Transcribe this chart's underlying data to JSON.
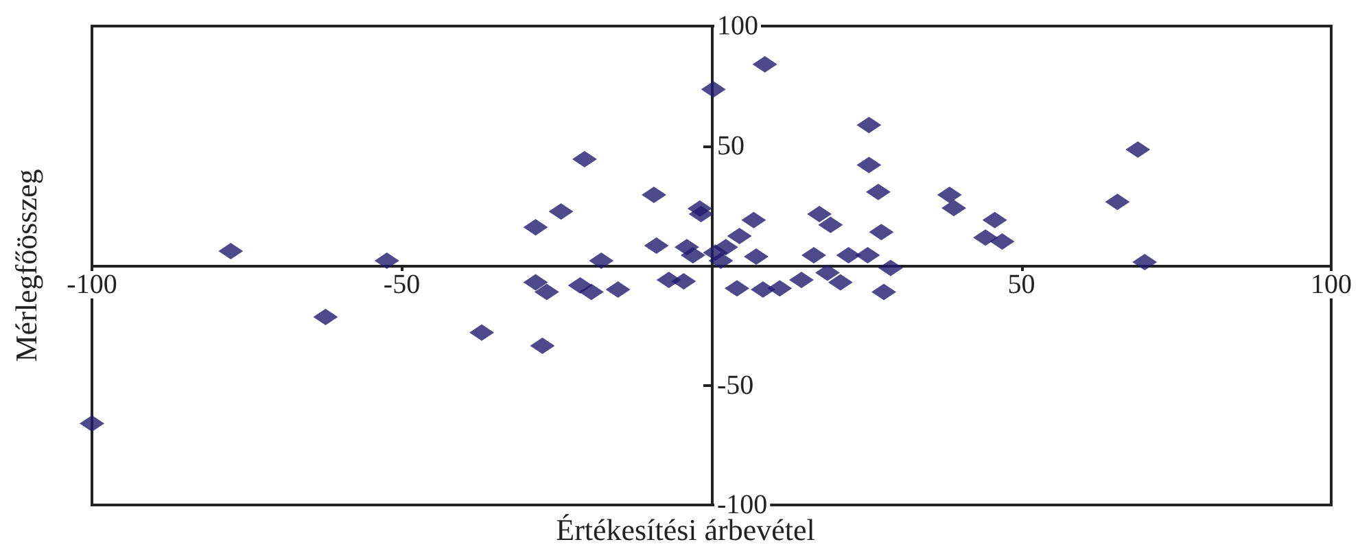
{
  "chart_data": {
    "type": "scatter",
    "xlabel": "Értékesítési árbevétel",
    "ylabel": "Mérlegfőösszeg",
    "xlim": [
      -100,
      100
    ],
    "ylim": [
      -100,
      100
    ],
    "xticks": [
      -100,
      -50,
      50,
      100
    ],
    "yticks": [
      -100,
      -50,
      50,
      100
    ],
    "grid": false,
    "marker": "diamond",
    "series": [
      {
        "color": "#221c6e",
        "x": [
          -100,
          -77.6,
          -62.3,
          -52.4,
          -37.1,
          -28.4,
          -28.4,
          -26.6,
          -27.3,
          -24.3,
          -20.5,
          -21.2,
          -19.4,
          -17.8,
          -15.1,
          -9.3,
          -8.9,
          -6.9,
          -4.5,
          -3,
          -1.9,
          -1.7,
          0.3,
          0.6,
          2.3,
          4.5,
          4.1,
          6.8,
          7.2,
          8.6,
          8.3,
          9.9,
          11,
          14.5,
          16.5,
          17.4,
          19.2,
          18.7,
          20.8,
          22.1,
          25.4,
          25.4,
          25.2,
          26.9,
          27.4,
          27.8,
          28.9,
          38.4,
          39.1,
          45.7,
          44.2,
          46.9,
          65.5,
          68.8,
          69.9,
          -4,
          1.5
        ],
        "values": [
          -66,
          6,
          -21.5,
          2,
          -28,
          16,
          -7,
          -11,
          -33.5,
          22.6,
          44.4,
          -8.3,
          -11,
          2,
          -10,
          29.5,
          8.3,
          -6,
          -6.6,
          4.3,
          23.8,
          21.5,
          73.6,
          5.4,
          7.7,
          12.3,
          -9.5,
          19,
          3.7,
          84,
          -10,
          null,
          -9.5,
          -6,
          4.3,
          21.5,
          17,
          -3,
          -7,
          4.3,
          58.7,
          42,
          4.3,
          30.7,
          14,
          -11,
          -1,
          29.5,
          24,
          19,
          11.7,
          10,
          26.6,
          48.4,
          1.4,
          7.7,
          2
        ]
      }
    ]
  }
}
